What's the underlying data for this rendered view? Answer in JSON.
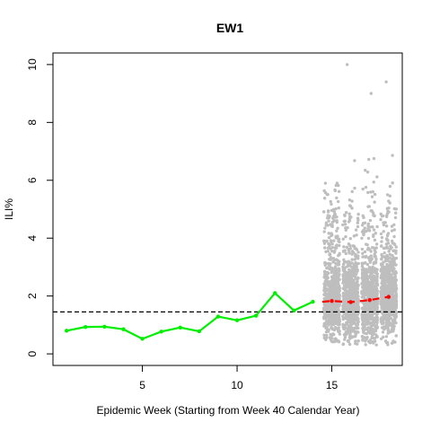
{
  "chart_data": {
    "type": "scatter",
    "title": "EW1",
    "xlabel": "Epidemic Week (Starting from Week 40 Calendar Year)",
    "ylabel": "ILI%",
    "xlim": [
      0.28,
      18.72
    ],
    "ylim": [
      -0.4,
      10.4
    ],
    "xticks": [
      5,
      10,
      15
    ],
    "yticks": [
      0,
      2,
      4,
      6,
      8,
      10
    ],
    "grid": false,
    "legend": "none",
    "baseline": {
      "y": 1.45,
      "style": "dashed",
      "color": "#000000"
    },
    "observed": {
      "color": "#00ee00",
      "x": [
        1,
        2,
        3,
        4,
        5,
        6,
        7,
        8,
        9,
        10,
        11,
        12,
        13,
        14
      ],
      "y": [
        0.8,
        0.93,
        0.94,
        0.85,
        0.52,
        0.77,
        0.91,
        0.78,
        1.29,
        1.16,
        1.32,
        2.1,
        1.5,
        1.8
      ]
    },
    "forecast_median": {
      "color": "#ff0000",
      "x": [
        14.5,
        15,
        16,
        17,
        18
      ],
      "y": [
        1.8,
        1.83,
        1.79,
        1.86,
        1.97
      ]
    },
    "forecast_samples": {
      "color": "#bebebe",
      "weeks": [
        15,
        16,
        17,
        18
      ],
      "ranges": [
        [
          0.4,
          5.9
        ],
        [
          0.3,
          10.0
        ],
        [
          0.3,
          9.0
        ],
        [
          0.3,
          9.4
        ]
      ]
    }
  }
}
